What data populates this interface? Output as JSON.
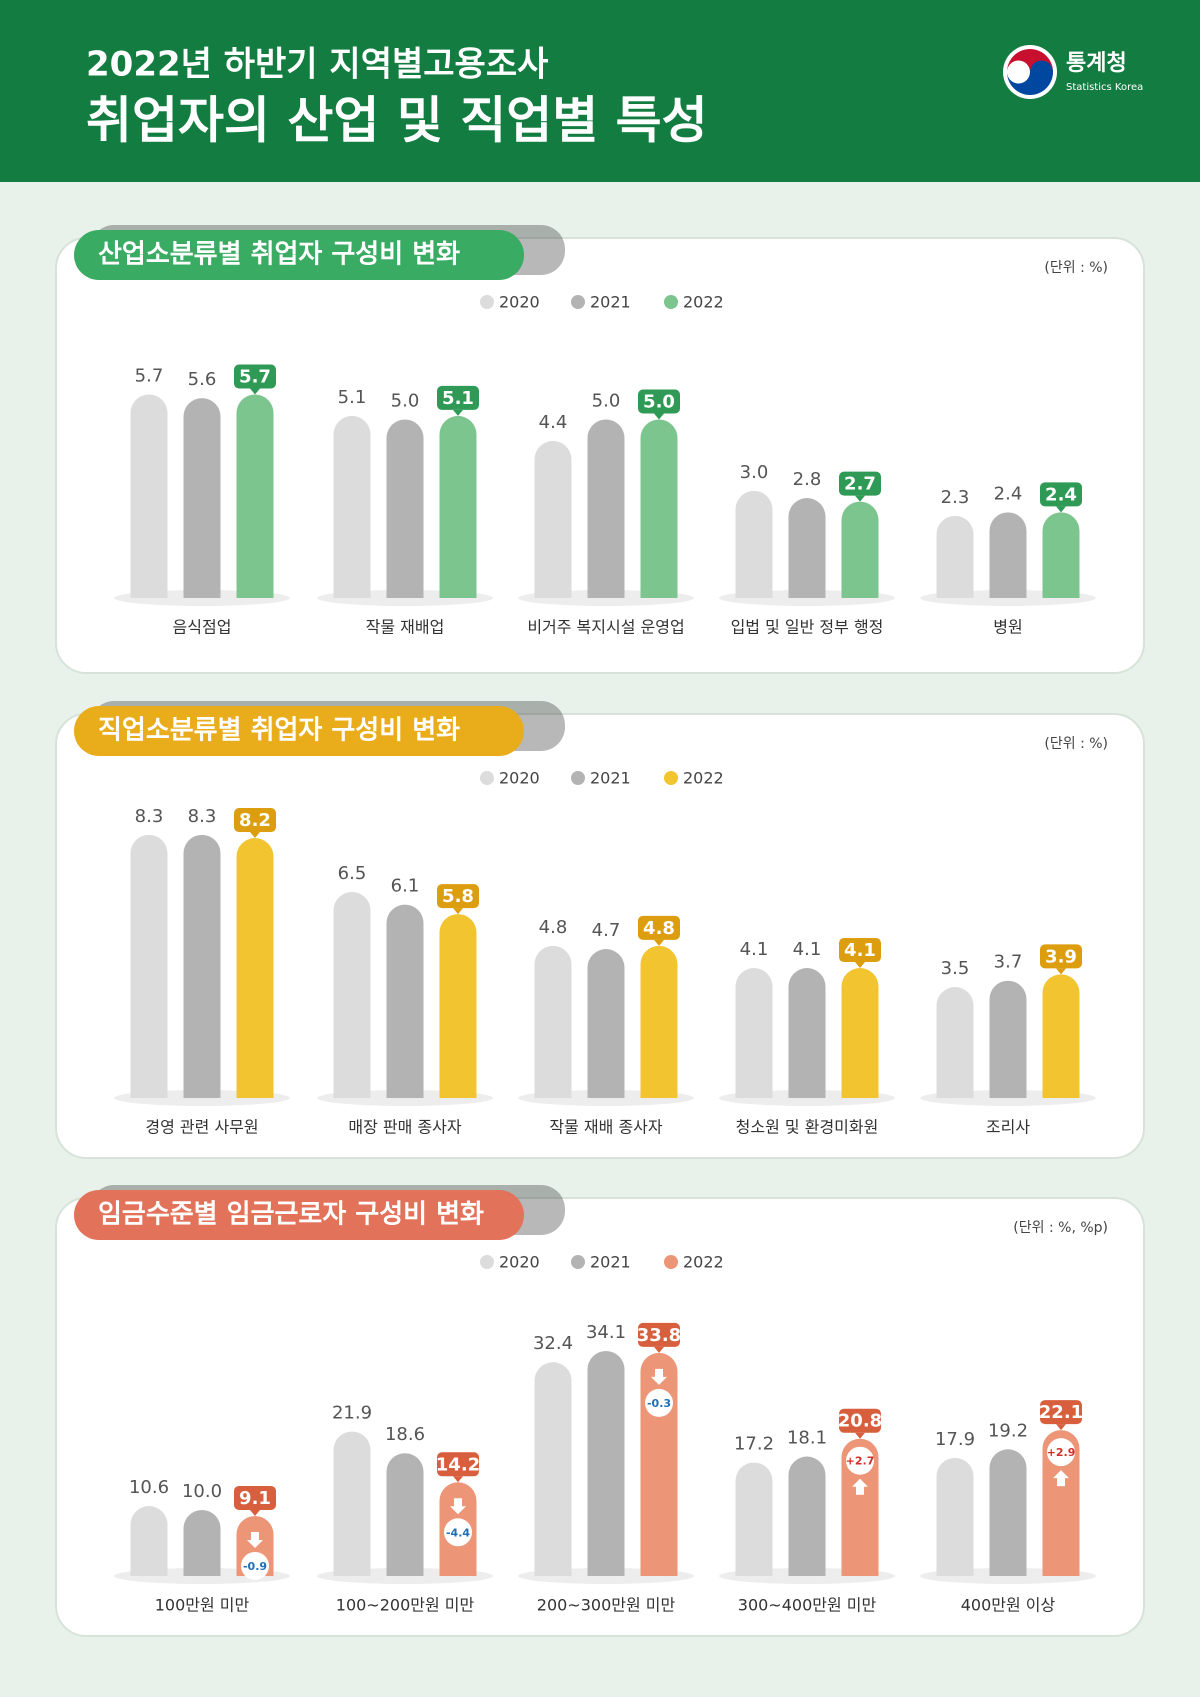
{
  "header": {
    "title1": "2022년 하반기 지역별고용조사",
    "title2": "취업자의 산업 및 직업별 특성",
    "logo": "통계청",
    "logo_en": "Statistics Korea"
  },
  "chart_data": [
    {
      "type": "bar",
      "title": "산업소분류별 취업자 구성비 변화",
      "unit": "(단위 : %)",
      "highlight_color": "#2e9a55",
      "tab_color": "#3aab63",
      "categories": [
        "음식점업",
        "작물 재배업",
        "비거주 복지시설 운영업",
        "입법 및 일반 정부 행정",
        "병원"
      ],
      "series": [
        {
          "name": "2020",
          "color": "#dcdcdc",
          "values": [
            5.7,
            5.1,
            4.4,
            3.0,
            2.3
          ],
          "value_labels": [
            "5.7",
            "5.1",
            "4.4",
            "3.0",
            "2.3"
          ]
        },
        {
          "name": "2021",
          "color": "#b3b3b3",
          "values": [
            5.6,
            5.0,
            5.0,
            2.8,
            2.4
          ],
          "value_labels": [
            "5.6",
            "5.0",
            "5.0",
            "2.8",
            "2.4"
          ]
        },
        {
          "name": "2022",
          "color": "#7dc58f",
          "values": [
            5.7,
            5.1,
            5.0,
            2.7,
            2.4
          ],
          "value_labels": [
            "5.7",
            "5.1",
            "5.0",
            "2.7",
            "2.4"
          ]
        }
      ]
    },
    {
      "type": "bar",
      "title": "직업소분류별 취업자 구성비 변화",
      "unit": "(단위 : %)",
      "highlight_color": "#dc9d0e",
      "tab_color": "#e9ad1c",
      "categories": [
        "경영 관련 사무원",
        "매장 판매 종사자",
        "작물 재배 종사자",
        "청소원 및 환경미화원",
        "조리사"
      ],
      "series": [
        {
          "name": "2020",
          "color": "#dcdcdc",
          "values": [
            8.3,
            6.5,
            4.8,
            4.1,
            3.5
          ],
          "value_labels": [
            "8.3",
            "6.5",
            "4.8",
            "4.1",
            "3.5"
          ]
        },
        {
          "name": "2021",
          "color": "#b3b3b3",
          "values": [
            8.3,
            6.1,
            4.7,
            4.1,
            3.7
          ],
          "value_labels": [
            "8.3",
            "6.1",
            "4.7",
            "4.1",
            "3.7"
          ]
        },
        {
          "name": "2022",
          "color": "#f2c42f",
          "values": [
            8.2,
            5.8,
            4.8,
            4.1,
            3.9
          ],
          "value_labels": [
            "8.2",
            "5.8",
            "4.8",
            "4.1",
            "3.9"
          ]
        }
      ]
    },
    {
      "type": "bar",
      "title": "임금수준별 임금근로자 구성비 변화",
      "unit": "(단위 : %, %p)",
      "highlight_color": "#d85f3e",
      "tab_color": "#e2735a",
      "categories": [
        "100만원 미만",
        "100~200만원 미만",
        "200~300만원 미만",
        "300~400만원 미만",
        "400만원 이상"
      ],
      "series": [
        {
          "name": "2020",
          "color": "#dcdcdc",
          "values": [
            10.6,
            21.9,
            32.4,
            17.2,
            17.9
          ],
          "value_labels": [
            "10.6",
            "21.9",
            "32.4",
            "17.2",
            "17.9"
          ]
        },
        {
          "name": "2021",
          "color": "#b3b3b3",
          "values": [
            10.0,
            18.6,
            34.1,
            18.1,
            19.2
          ],
          "value_labels": [
            "10.0",
            "18.6",
            "34.1",
            "18.1",
            "19.2"
          ]
        },
        {
          "name": "2022",
          "color": "#ec9677",
          "values": [
            9.1,
            14.2,
            33.8,
            20.8,
            22.1
          ],
          "value_labels": [
            "9.1",
            "14.2",
            "33.8",
            "20.8",
            "22.1"
          ]
        }
      ],
      "changes": [
        -0.9,
        -4.4,
        -0.3,
        2.7,
        2.9
      ],
      "change_labels": [
        "-0.9",
        "-4.4",
        "-0.3",
        "+2.7",
        "+2.9"
      ]
    }
  ]
}
